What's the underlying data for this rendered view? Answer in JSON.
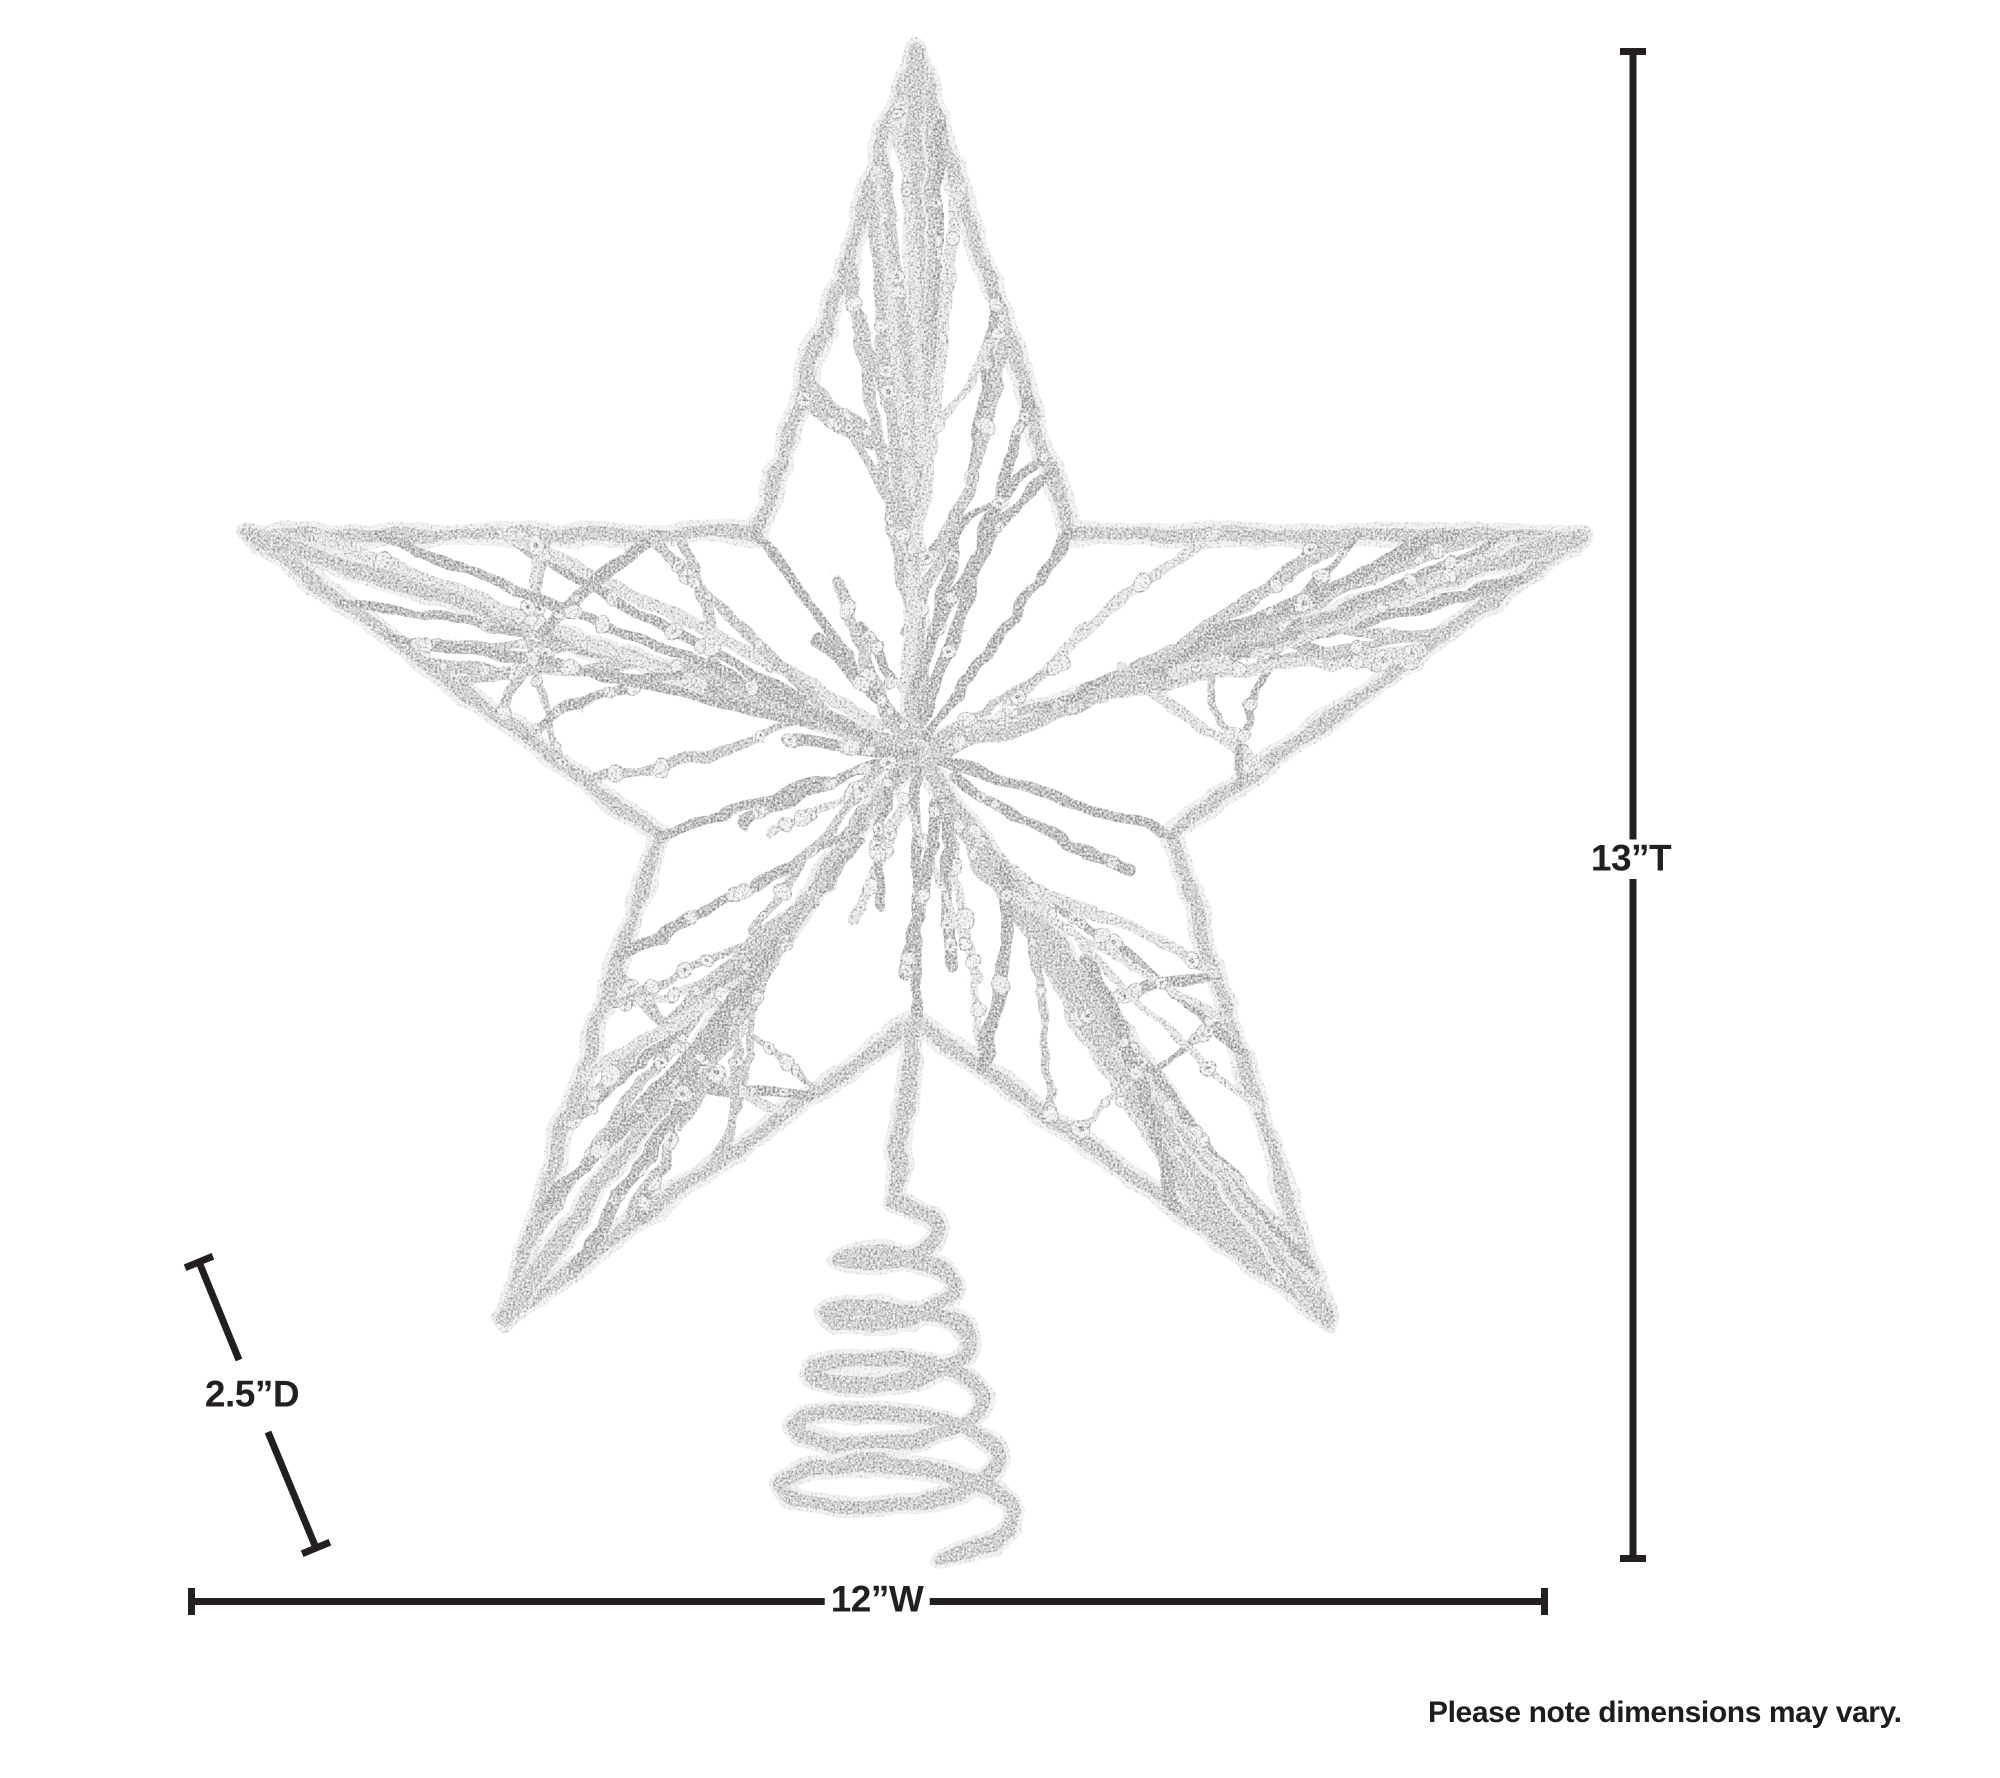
{
  "product": {
    "name": "Silver glitter sequin star tree topper with spiral wire base",
    "colors": {
      "silver_light": "#d9d9d9",
      "silver_mid": "#bcbcbc",
      "silver_dark": "#a3a3a3",
      "sequin_fill": "#ececec",
      "sequin_rim": "#a9a9a9",
      "bead_dot": "#8d8d8d"
    }
  },
  "dimensions": {
    "line_color": "#231f20",
    "height": {
      "label": "13”T"
    },
    "width": {
      "label": "12”W"
    },
    "depth": {
      "label": "2.5”D"
    }
  },
  "note": {
    "text": "Please note dimensions may vary."
  }
}
